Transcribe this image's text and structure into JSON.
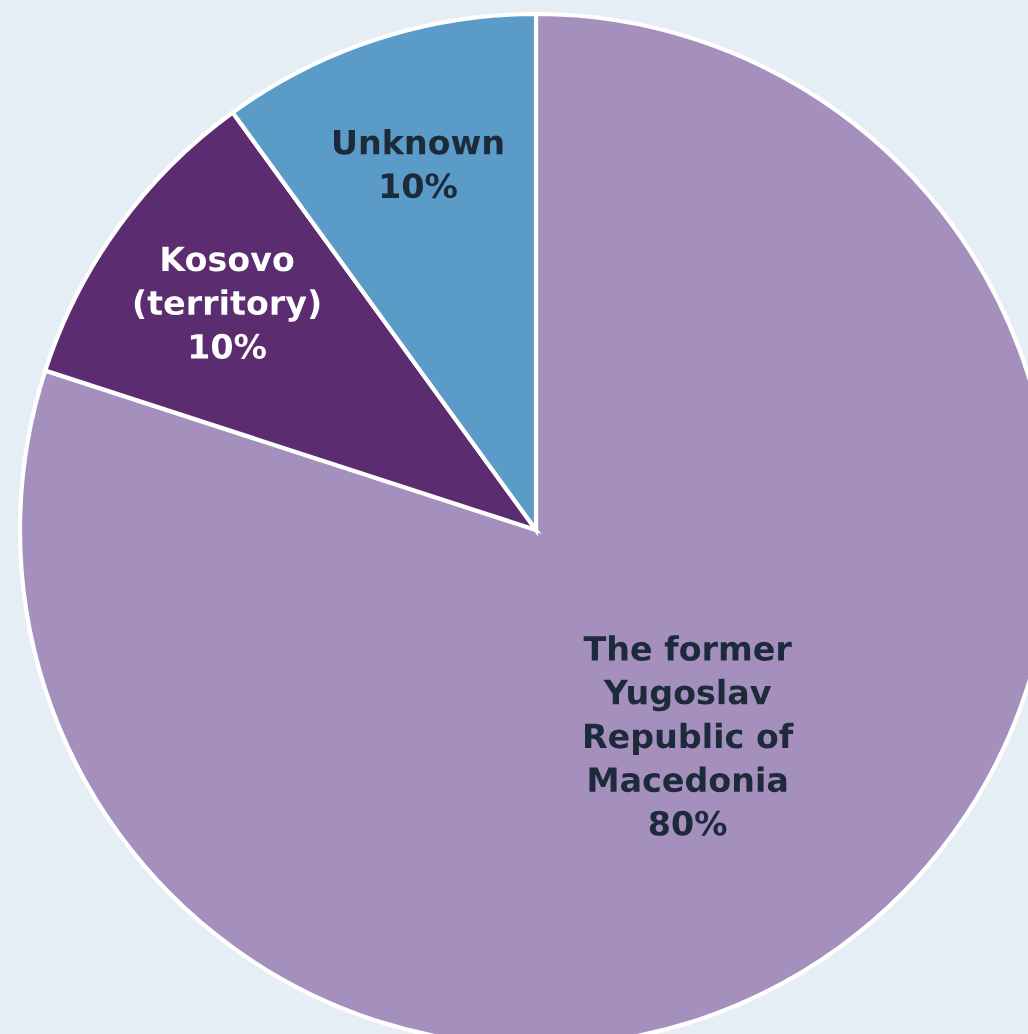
{
  "chart_data": {
    "type": "pie",
    "categories": [
      "The former\nYugoslav\nRepublic of\nMacedonia",
      "Kosovo\n(territory)",
      "Unknown"
    ],
    "values": [
      80,
      10,
      10
    ],
    "value_labels": [
      "80%",
      "10%",
      "10%"
    ],
    "colors": [
      "#a48fbd",
      "#5b2c6f",
      "#5b9bc8"
    ],
    "legend": false
  }
}
